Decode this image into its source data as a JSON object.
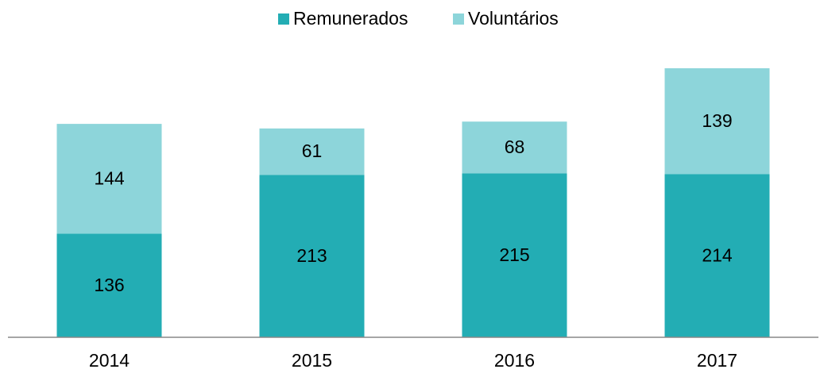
{
  "chart_data": {
    "type": "stacked_bar",
    "categories": [
      "2014",
      "2015",
      "2016",
      "2017"
    ],
    "series": [
      {
        "name": "Remunerados",
        "color": "#23adb4",
        "values": [
          136,
          213,
          215,
          214
        ]
      },
      {
        "name": "Voluntários",
        "color": "#8dd5da",
        "values": [
          144,
          61,
          68,
          139
        ]
      }
    ],
    "legend": "top"
  }
}
